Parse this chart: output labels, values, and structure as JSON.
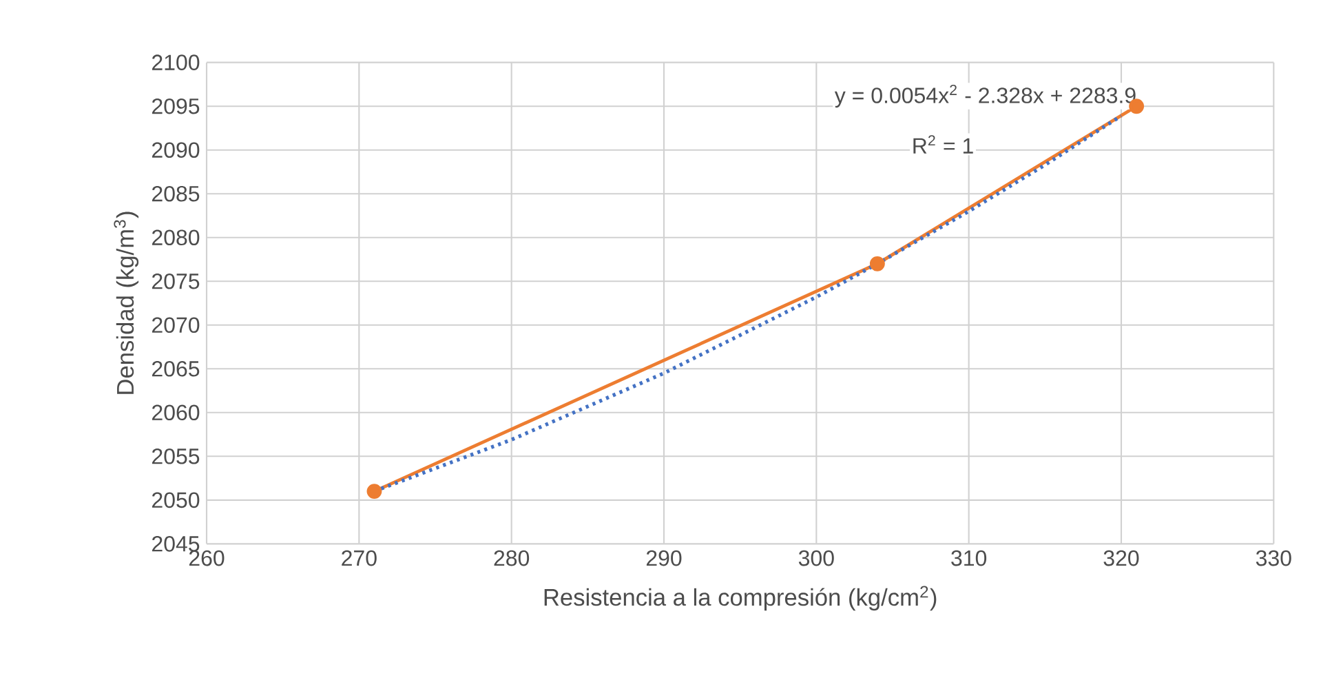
{
  "chart_data": {
    "type": "line",
    "xlabel": "Resistencia a la compresión (kg/cm$^{2}$)",
    "ylabel": "Densidad (kg/m$^{3}$)",
    "annotations": [
      "y = 0.0054x$^{2}$ - 2.328x + 2283.9",
      "R$^{2}$ = 1"
    ],
    "series": [
      {
        "color": "#ed7d31",
        "marker": "circle",
        "line_style": "solid",
        "x": [
          271,
          304,
          321
        ],
        "values": [
          2051,
          2077,
          2095
        ]
      },
      {
        "color": "#4472c4",
        "marker": "none",
        "line_style": "dotted",
        "x": [
          271,
          280,
          290,
          300,
          304,
          310,
          315,
          320
        ],
        "values": [
          2051,
          2056.9,
          2064.5,
          2073.2,
          2077,
          2083,
          2088.3,
          2093.9
        ]
      }
    ],
    "xlim": [
      260,
      330
    ],
    "xticks": [
      260,
      270,
      280,
      290,
      300,
      310,
      320,
      330
    ],
    "ylim": [
      2045,
      2100
    ],
    "yticks": [
      2045,
      2050,
      2055,
      2060,
      2065,
      2070,
      2075,
      2080,
      2085,
      2090,
      2095,
      2100
    ],
    "grid": true
  }
}
